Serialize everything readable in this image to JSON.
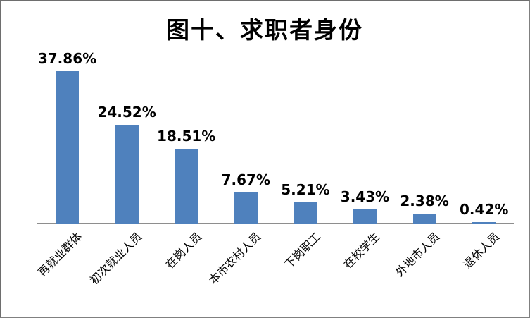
{
  "chart_data": {
    "type": "bar",
    "title": "图十、求职者身份",
    "categories": [
      "再就业群体",
      "初次就业人员",
      "在岗人员",
      "本市农村人员",
      "下岗职工",
      "在校学生",
      "外地市人员",
      "退休人员"
    ],
    "values": [
      37.86,
      24.52,
      18.51,
      7.67,
      5.21,
      3.43,
      2.38,
      0.42
    ],
    "data_labels": [
      "37.86%",
      "24.52%",
      "18.51%",
      "7.67%",
      "5.21%",
      "3.43%",
      "2.38%",
      "0.42%"
    ],
    "xlabel": "",
    "ylabel": "",
    "ylim": [
      0,
      40
    ],
    "grid": false,
    "legend": "none",
    "data_label_position": "above-bar",
    "bar_color": "#4F81BD",
    "axis_line_color": "#8E8E8E",
    "background_color": "#FFFFFF",
    "text_color": "#000000"
  }
}
